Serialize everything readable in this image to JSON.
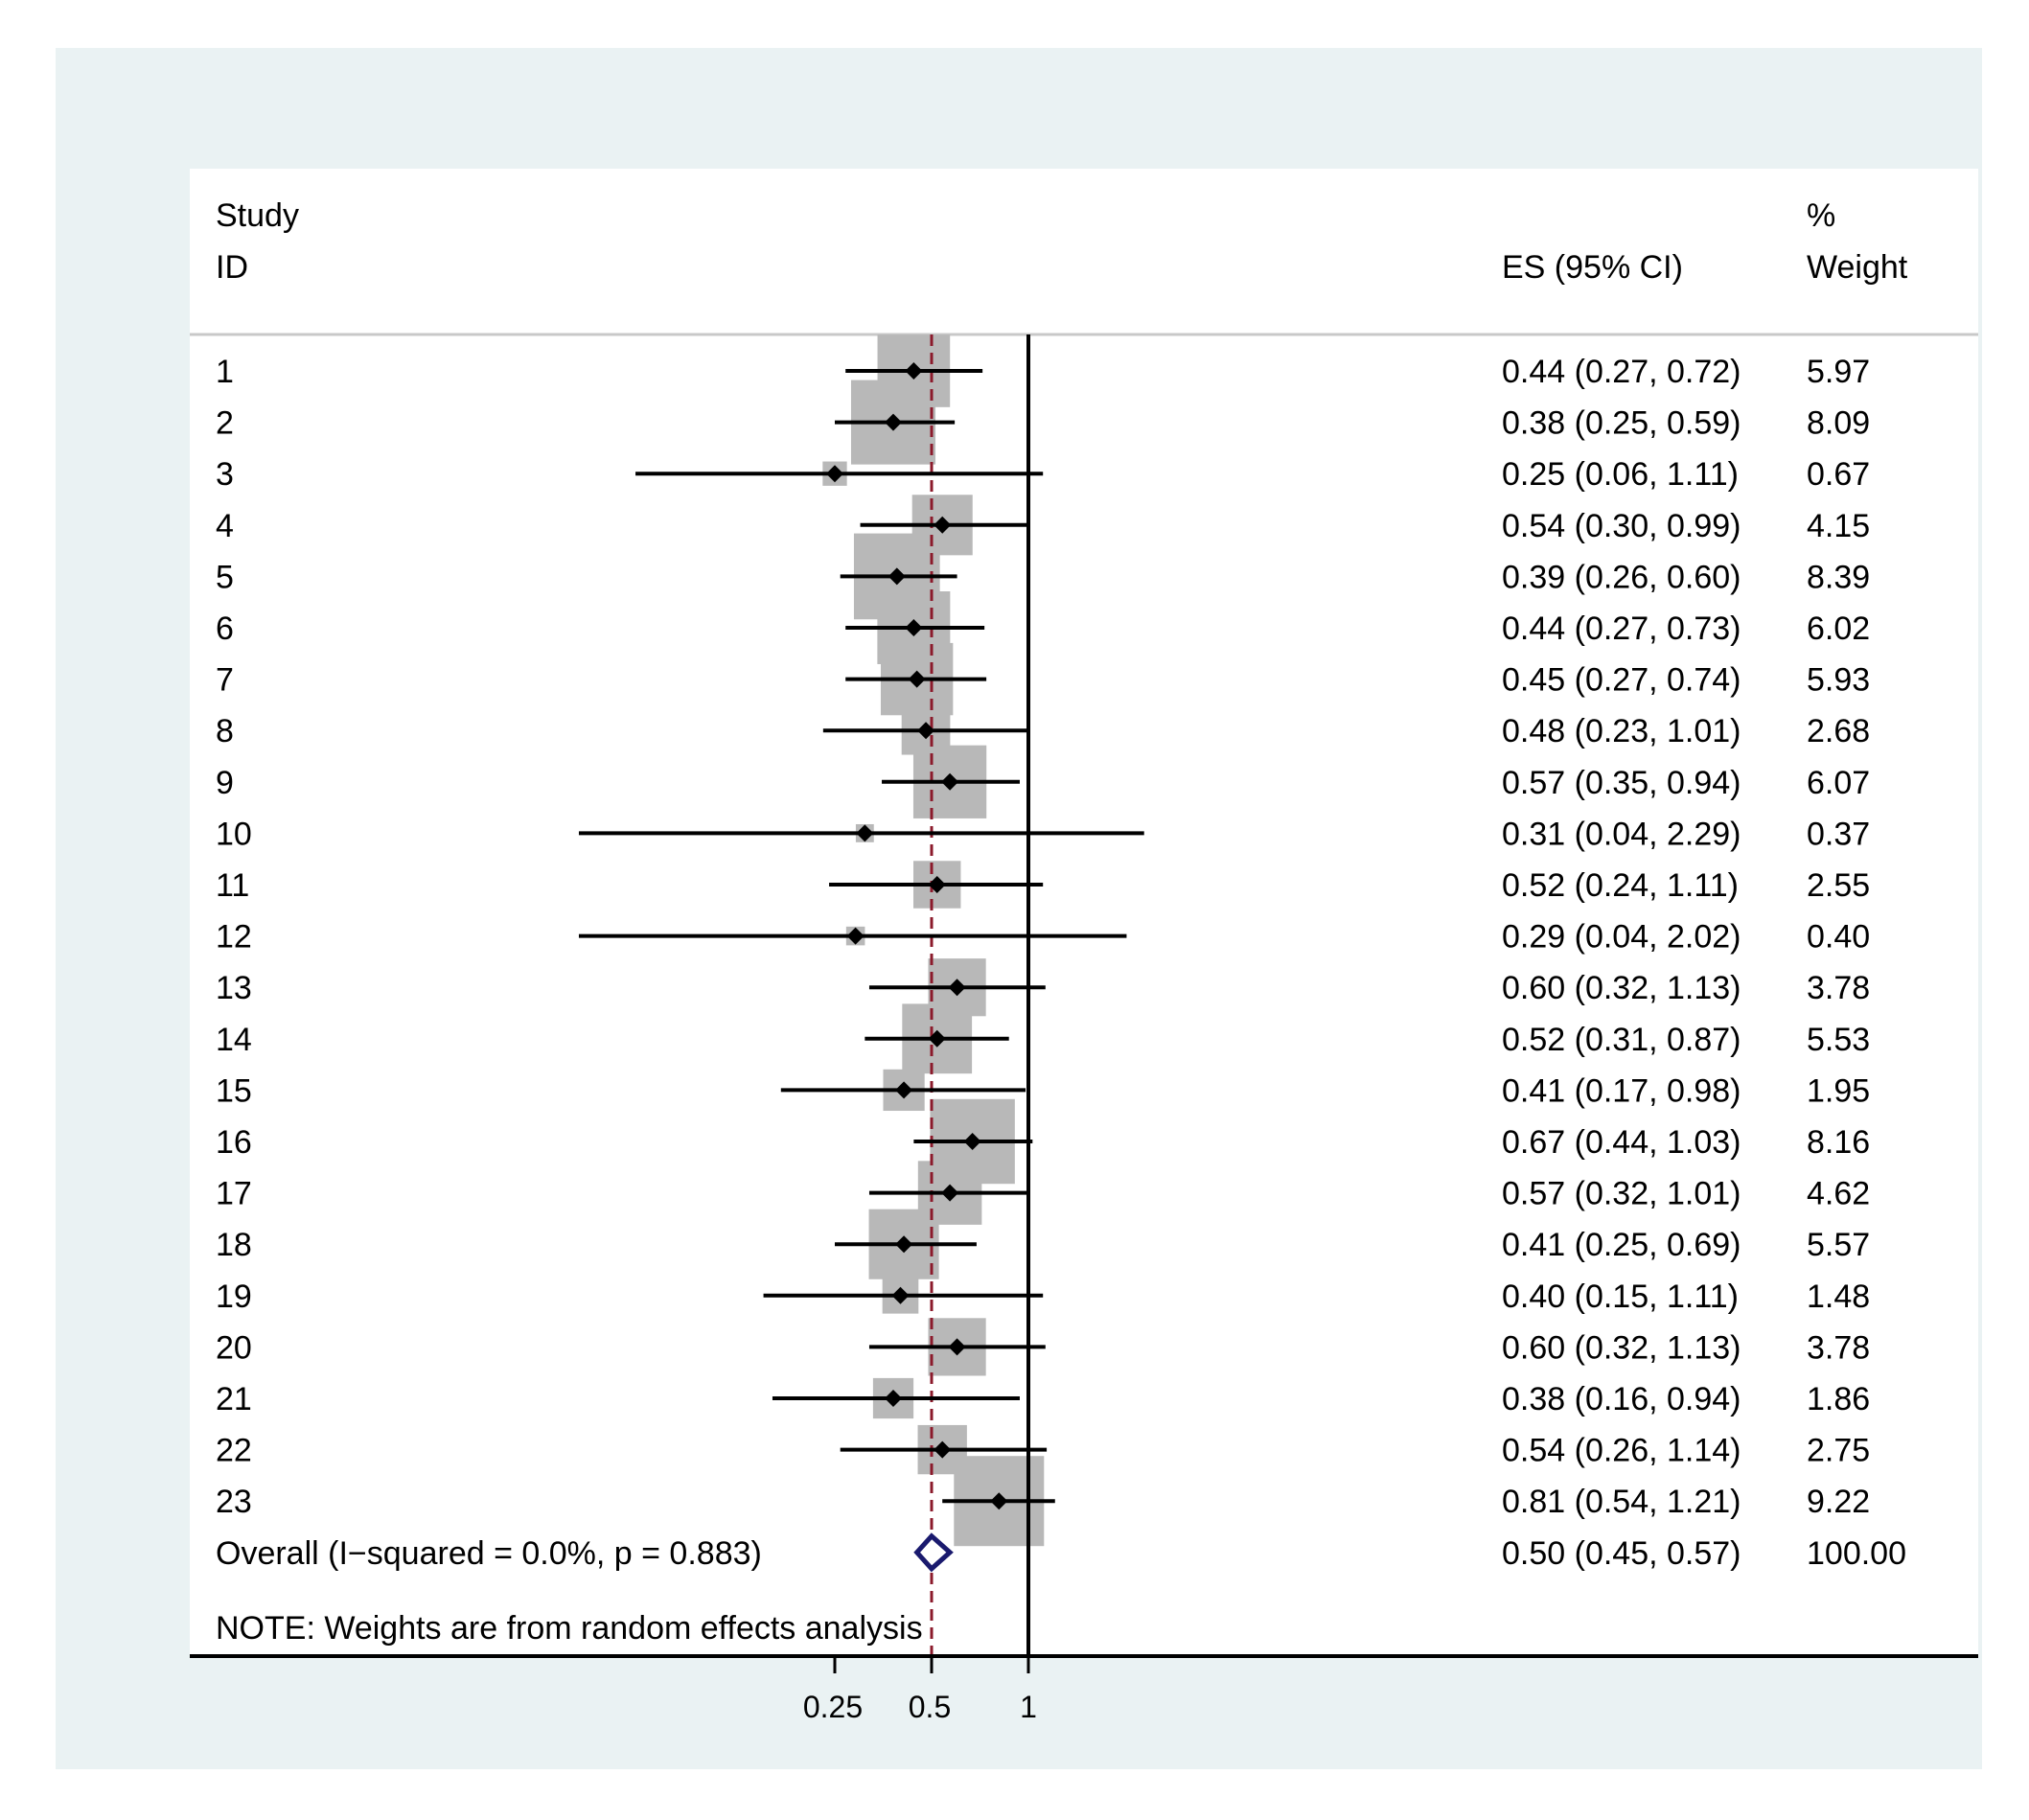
{
  "chart_data": {
    "type": "forest",
    "header": {
      "study_line1": "Study",
      "study_line2": "ID",
      "es_label": "ES (95% CI)",
      "weight_line1": "%",
      "weight_line2": "Weight"
    },
    "studies": [
      {
        "id": "1",
        "es": 0.44,
        "lo": 0.27,
        "hi": 0.72,
        "weight": 5.97,
        "es_text": "0.44 (0.27, 0.72)",
        "weight_text": "5.97"
      },
      {
        "id": "2",
        "es": 0.38,
        "lo": 0.25,
        "hi": 0.59,
        "weight": 8.09,
        "es_text": "0.38 (0.25, 0.59)",
        "weight_text": "8.09"
      },
      {
        "id": "3",
        "es": 0.25,
        "lo": 0.06,
        "hi": 1.11,
        "weight": 0.67,
        "es_text": "0.25 (0.06, 1.11)",
        "weight_text": "0.67"
      },
      {
        "id": "4",
        "es": 0.54,
        "lo": 0.3,
        "hi": 0.99,
        "weight": 4.15,
        "es_text": "0.54 (0.30, 0.99)",
        "weight_text": "4.15"
      },
      {
        "id": "5",
        "es": 0.39,
        "lo": 0.26,
        "hi": 0.6,
        "weight": 8.39,
        "es_text": "0.39 (0.26, 0.60)",
        "weight_text": "8.39"
      },
      {
        "id": "6",
        "es": 0.44,
        "lo": 0.27,
        "hi": 0.73,
        "weight": 6.02,
        "es_text": "0.44 (0.27, 0.73)",
        "weight_text": "6.02"
      },
      {
        "id": "7",
        "es": 0.45,
        "lo": 0.27,
        "hi": 0.74,
        "weight": 5.93,
        "es_text": "0.45 (0.27, 0.74)",
        "weight_text": "5.93"
      },
      {
        "id": "8",
        "es": 0.48,
        "lo": 0.23,
        "hi": 1.01,
        "weight": 2.68,
        "es_text": "0.48 (0.23, 1.01)",
        "weight_text": "2.68"
      },
      {
        "id": "9",
        "es": 0.57,
        "lo": 0.35,
        "hi": 0.94,
        "weight": 6.07,
        "es_text": "0.57 (0.35, 0.94)",
        "weight_text": "6.07"
      },
      {
        "id": "10",
        "es": 0.31,
        "lo": 0.04,
        "hi": 2.29,
        "weight": 0.37,
        "es_text": "0.31 (0.04, 2.29)",
        "weight_text": "0.37"
      },
      {
        "id": "11",
        "es": 0.52,
        "lo": 0.24,
        "hi": 1.11,
        "weight": 2.55,
        "es_text": "0.52 (0.24, 1.11)",
        "weight_text": "2.55"
      },
      {
        "id": "12",
        "es": 0.29,
        "lo": 0.04,
        "hi": 2.02,
        "weight": 0.4,
        "es_text": "0.29 (0.04, 2.02)",
        "weight_text": "0.40"
      },
      {
        "id": "13",
        "es": 0.6,
        "lo": 0.32,
        "hi": 1.13,
        "weight": 3.78,
        "es_text": "0.60 (0.32, 1.13)",
        "weight_text": "3.78"
      },
      {
        "id": "14",
        "es": 0.52,
        "lo": 0.31,
        "hi": 0.87,
        "weight": 5.53,
        "es_text": "0.52 (0.31, 0.87)",
        "weight_text": "5.53"
      },
      {
        "id": "15",
        "es": 0.41,
        "lo": 0.17,
        "hi": 0.98,
        "weight": 1.95,
        "es_text": "0.41 (0.17, 0.98)",
        "weight_text": "1.95"
      },
      {
        "id": "16",
        "es": 0.67,
        "lo": 0.44,
        "hi": 1.03,
        "weight": 8.16,
        "es_text": "0.67 (0.44, 1.03)",
        "weight_text": "8.16"
      },
      {
        "id": "17",
        "es": 0.57,
        "lo": 0.32,
        "hi": 1.01,
        "weight": 4.62,
        "es_text": "0.57 (0.32, 1.01)",
        "weight_text": "4.62"
      },
      {
        "id": "18",
        "es": 0.41,
        "lo": 0.25,
        "hi": 0.69,
        "weight": 5.57,
        "es_text": "0.41 (0.25, 0.69)",
        "weight_text": "5.57"
      },
      {
        "id": "19",
        "es": 0.4,
        "lo": 0.15,
        "hi": 1.11,
        "weight": 1.48,
        "es_text": "0.40 (0.15, 1.11)",
        "weight_text": "1.48"
      },
      {
        "id": "20",
        "es": 0.6,
        "lo": 0.32,
        "hi": 1.13,
        "weight": 3.78,
        "es_text": "0.60 (0.32, 1.13)",
        "weight_text": "3.78"
      },
      {
        "id": "21",
        "es": 0.38,
        "lo": 0.16,
        "hi": 0.94,
        "weight": 1.86,
        "es_text": "0.38 (0.16, 0.94)",
        "weight_text": "1.86"
      },
      {
        "id": "22",
        "es": 0.54,
        "lo": 0.26,
        "hi": 1.14,
        "weight": 2.75,
        "es_text": "0.54 (0.26, 1.14)",
        "weight_text": "2.75"
      },
      {
        "id": "23",
        "es": 0.81,
        "lo": 0.54,
        "hi": 1.21,
        "weight": 9.22,
        "es_text": "0.81 (0.54, 1.21)",
        "weight_text": "9.22"
      }
    ],
    "overall": {
      "label": "Overall  (I−squared = 0.0%, p = 0.883)",
      "es": 0.5,
      "lo": 0.45,
      "hi": 0.57,
      "es_text": "0.50 (0.45, 0.57)",
      "weight_text": "100.00"
    },
    "note": "NOTE: Weights are from random effects analysis",
    "x_scale": "log",
    "null_value": 1,
    "x_ticks": [
      {
        "value": 0.25,
        "label": "0.25"
      },
      {
        "value": 0.5,
        "label": "0.5"
      },
      {
        "value": 1,
        "label": "1"
      }
    ],
    "colors": {
      "frame_bg": "#eaf2f3",
      "plot_bg": "#ffffff",
      "weight_box": "#b8b8b8",
      "ci_line": "#000000",
      "overall_diamond": "#1a1a6e",
      "overall_line": "#8b1a2b",
      "header_rule": "#c8c8c8"
    }
  }
}
